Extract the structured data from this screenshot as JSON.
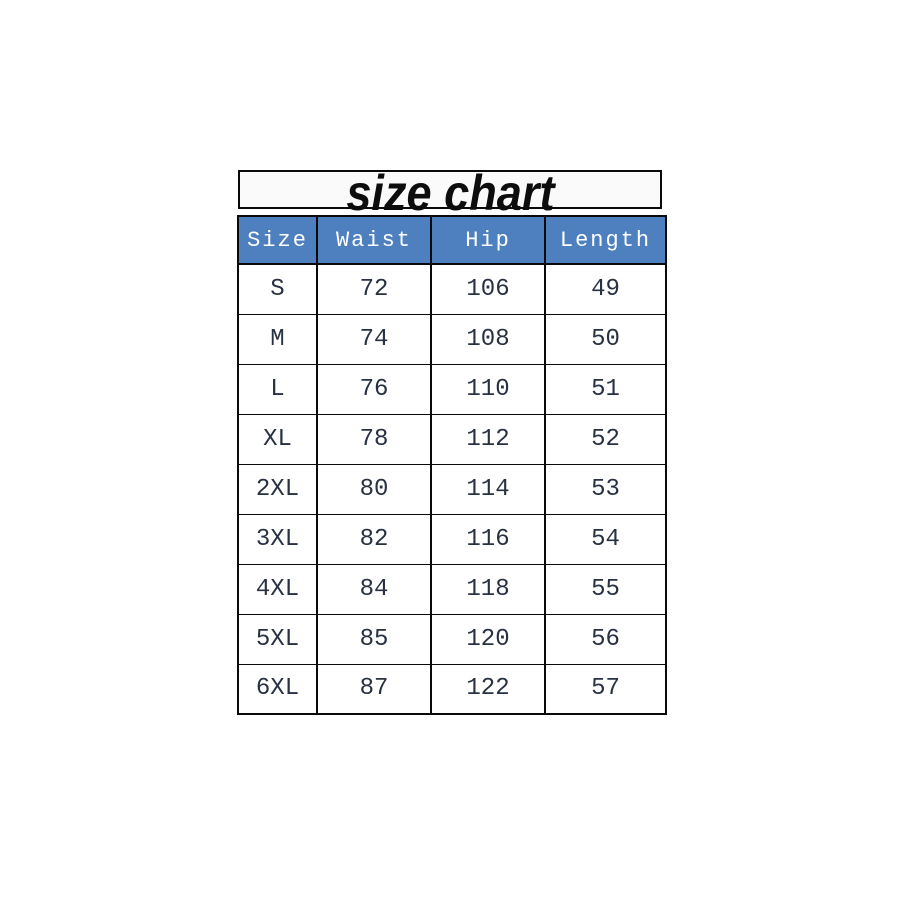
{
  "title": "size chart",
  "chart_data": {
    "type": "table",
    "title": "size chart",
    "columns": [
      "Size",
      "Waist",
      "Hip",
      "Length"
    ],
    "rows": [
      [
        "S",
        "72",
        "106",
        "49"
      ],
      [
        "M",
        "74",
        "108",
        "50"
      ],
      [
        "L",
        "76",
        "110",
        "51"
      ],
      [
        "XL",
        "78",
        "112",
        "52"
      ],
      [
        "2XL",
        "80",
        "114",
        "53"
      ],
      [
        "3XL",
        "82",
        "116",
        "54"
      ],
      [
        "4XL",
        "84",
        "118",
        "55"
      ],
      [
        "5XL",
        "85",
        "120",
        "56"
      ],
      [
        "6XL",
        "87",
        "122",
        "57"
      ]
    ]
  },
  "colors": {
    "header_bg": "#4e80c0",
    "header_text": "#ffffff",
    "cell_text": "#273142",
    "border": "#0a0a0a",
    "title_bg": "#fbfafa",
    "title_text": "#0d0d0d",
    "page_bg": "#ffffff"
  }
}
